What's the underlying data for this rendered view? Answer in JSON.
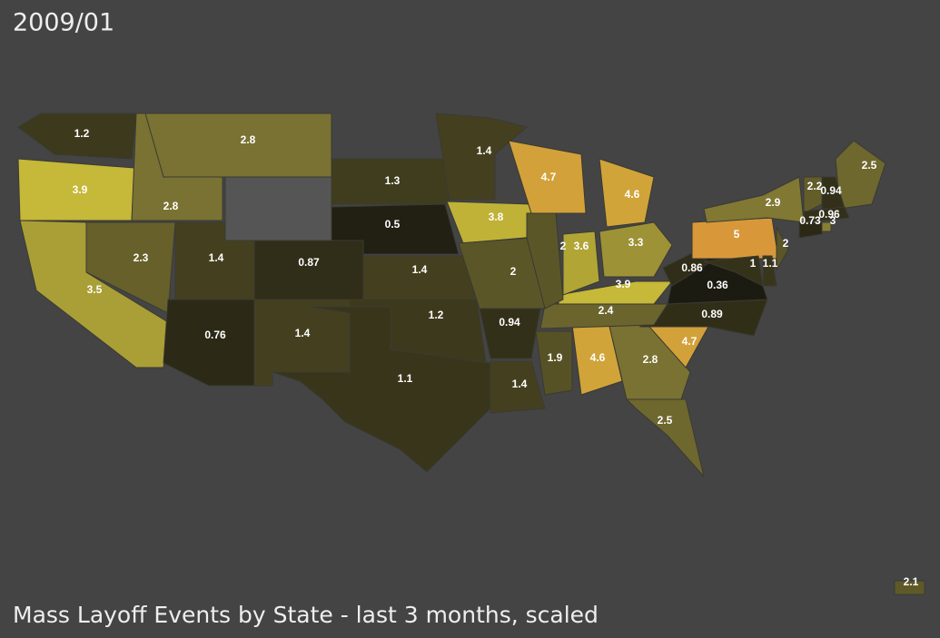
{
  "title": "2009/01",
  "caption": "Mass Layoff Events by State - last 3 months, scaled",
  "map": {
    "values": [
      1.2,
      3.9,
      3.5,
      2.8,
      2.8,
      2.3,
      1.4,
      0.87,
      0.76,
      1.4,
      1.3,
      0.5,
      1.4,
      1.4,
      1.2,
      1.1,
      3.8,
      2,
      0.94,
      1.4,
      1.9,
      4.6,
      2.8,
      2.5,
      4.7,
      0.89,
      2.4,
      3.9,
      0.36,
      0.86,
      2,
      4.7,
      4.6,
      3.6,
      3.3,
      5,
      2.9,
      1,
      1.1,
      2,
      2.5,
      2.2,
      0.94,
      0.96,
      0.73,
      3,
      2.1
    ]
  }
}
